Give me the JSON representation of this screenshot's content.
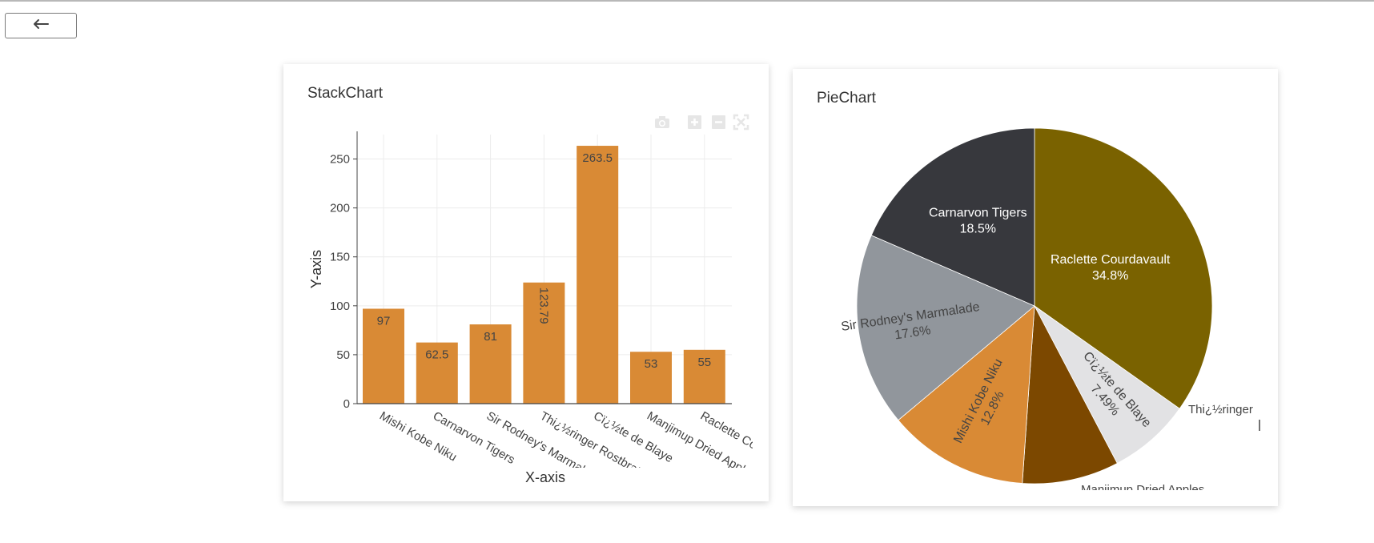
{
  "back_button": {
    "icon": "arrow-left-icon",
    "label": "←"
  },
  "chart_data": [
    {
      "type": "bar",
      "title": "StackChart",
      "xlabel": "X-axis",
      "ylabel": "Y-axis",
      "ylim": [
        0,
        275
      ],
      "yticks": [
        0,
        50,
        100,
        150,
        200,
        250
      ],
      "grid": true,
      "bar_color": "#d98a35",
      "categories": [
        "Mishi Kobe Niku",
        "Carnarvon Tigers",
        "Sir Rodney's Marmalade",
        "Thi¿½ringer Rostbratwurst",
        "Cï¿½te de Blaye",
        "Manjimup Dried Apples",
        "Raclette Courdavault"
      ],
      "values": [
        97,
        62.5,
        81,
        123.79,
        263.5,
        53,
        55
      ],
      "value_labels": [
        "97",
        "62.5",
        "81",
        "123.79",
        "263.5",
        "53",
        "55"
      ]
    },
    {
      "type": "pie",
      "title": "PieChart",
      "slices": [
        {
          "label": "Raclette Courdavault",
          "percent": "34.8%",
          "value": 34.8,
          "color": "#7a6200"
        },
        {
          "label": "Cï¿½te de Blaye",
          "percent": "7.49%",
          "value": 7.49,
          "color": "#e2e2e4"
        },
        {
          "label": "Manjimup Dried Apples",
          "percent": "",
          "value": 8.8,
          "color": "#7c4800"
        },
        {
          "label": "Mishi Kobe Niku",
          "percent": "12.8%",
          "value": 12.8,
          "color": "#d98a35"
        },
        {
          "label": "Sir Rodney's Marmalade",
          "percent": "17.6%",
          "value": 17.6,
          "color": "#91969c"
        },
        {
          "label": "Carnarvon Tigers",
          "percent": "18.5%",
          "value": 18.5,
          "color": "#37383d"
        }
      ],
      "outside_labels": [
        "Thi¿½ringer",
        "Manjimup Dried Apples"
      ]
    }
  ]
}
